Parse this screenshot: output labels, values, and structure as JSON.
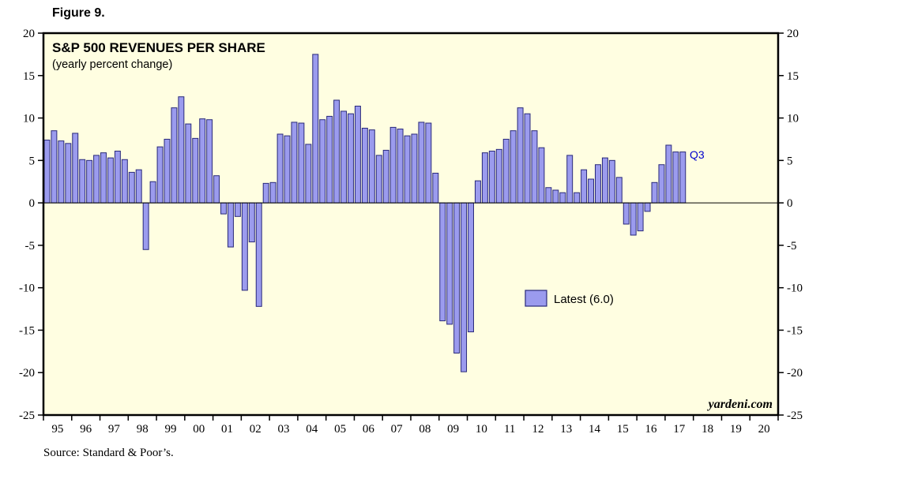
{
  "figure_label": "Figure 9.",
  "source_note": "Source: Standard & Poor’s.",
  "watermark": "yardeni.com",
  "annotation_q3": "Q3",
  "legend": {
    "label": "Latest (6.0)"
  },
  "colors": {
    "plot_background": "#fffee1",
    "frame": "#000000",
    "bar_fill": "#9b9bee",
    "bar_stroke": "#29297a",
    "annotation": "#0000cc",
    "zero_line": "#000000"
  },
  "chart_data": {
    "type": "bar",
    "title": "S&P 500 REVENUES PER SHARE",
    "subtitle": "(yearly percent change)",
    "xlabel": "",
    "ylabel": "yearly percent change",
    "ylim": [
      -25,
      20
    ],
    "ytick_interval": 5,
    "y_ticks": [
      20,
      15,
      10,
      5,
      0,
      -5,
      -10,
      -15,
      -20,
      -25
    ],
    "x_tick_labels": [
      "95",
      "96",
      "97",
      "98",
      "99",
      "00",
      "01",
      "02",
      "03",
      "04",
      "05",
      "06",
      "07",
      "08",
      "09",
      "10",
      "11",
      "12",
      "13",
      "14",
      "15",
      "16",
      "17",
      "18",
      "19",
      "20"
    ],
    "grid": false,
    "legend_position": "inside-right-middle",
    "frequency": "quarterly",
    "start_label": "1995 Q1",
    "end_label": "2017 Q3",
    "latest": {
      "period": "2017 Q3",
      "value": 6.0
    },
    "series": [
      {
        "name": "S&P 500 revenues per share (yearly percent change)",
        "values": [
          7.4,
          8.5,
          7.3,
          7.0,
          8.2,
          5.1,
          5.0,
          5.6,
          5.9,
          5.3,
          6.1,
          5.1,
          3.6,
          3.9,
          -5.5,
          2.5,
          6.6,
          7.5,
          11.2,
          12.5,
          9.3,
          7.6,
          9.9,
          9.8,
          3.2,
          -1.3,
          -5.2,
          -1.6,
          -10.3,
          -4.6,
          -12.2,
          2.3,
          2.4,
          8.1,
          7.9,
          9.5,
          9.4,
          6.9,
          17.5,
          9.8,
          10.2,
          12.1,
          10.8,
          10.5,
          11.4,
          8.8,
          8.6,
          5.6,
          6.2,
          8.9,
          8.7,
          7.9,
          8.1,
          9.5,
          9.4,
          3.5,
          -13.9,
          -14.3,
          -17.7,
          -19.9,
          -15.2,
          2.6,
          5.9,
          6.1,
          6.3,
          7.5,
          8.5,
          11.2,
          10.5,
          8.5,
          6.5,
          1.8,
          1.5,
          1.2,
          5.6,
          1.2,
          3.9,
          2.8,
          4.5,
          5.3,
          5.0,
          3.0,
          -2.5,
          -3.8,
          -3.3,
          -1.0,
          2.4,
          4.5,
          6.8,
          6.0,
          6.0
        ]
      }
    ]
  }
}
